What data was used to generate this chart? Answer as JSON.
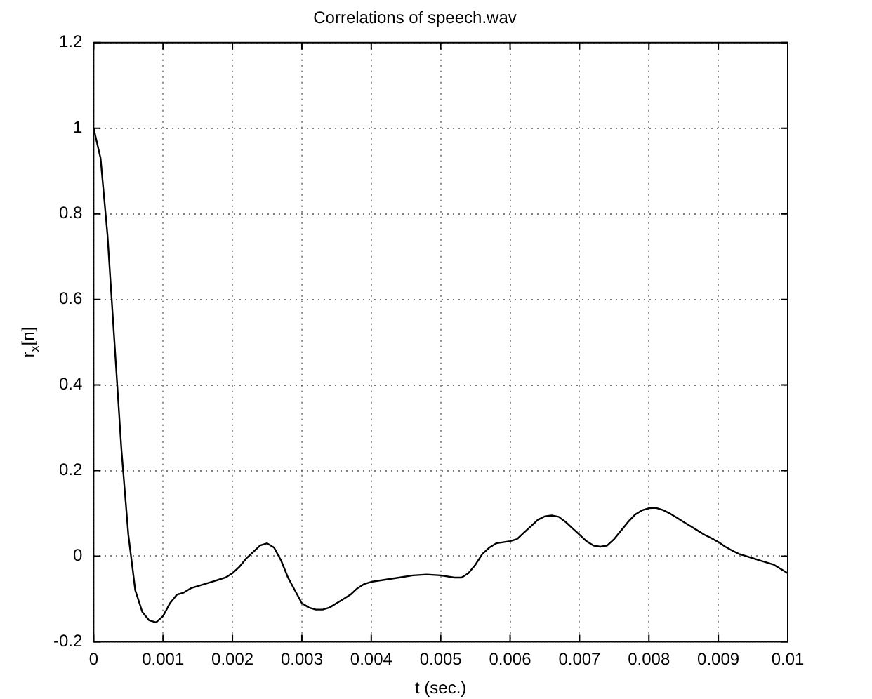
{
  "chart_data": {
    "type": "line",
    "title": "Correlations of speech.wav",
    "xlabel": "t (sec.)",
    "ylabel": "r$_{x}$[n]",
    "x": [
      0,
      0.0001,
      0.0002,
      0.0003,
      0.0004,
      0.0005,
      0.0006,
      0.0007,
      0.0008,
      0.0009,
      0.001,
      0.0011,
      0.0012,
      0.0013,
      0.0014,
      0.0015,
      0.0016,
      0.0017,
      0.0018,
      0.0019,
      0.002,
      0.0021,
      0.0022,
      0.0023,
      0.0024,
      0.0025,
      0.0026,
      0.0027,
      0.0028,
      0.0029,
      0.003,
      0.0031,
      0.0032,
      0.0033,
      0.0034,
      0.0035,
      0.0036,
      0.0037,
      0.0038,
      0.0039,
      0.004,
      0.0042,
      0.0044,
      0.0046,
      0.0048,
      0.005,
      0.0052,
      0.0053,
      0.0054,
      0.0055,
      0.0056,
      0.0057,
      0.0058,
      0.006,
      0.0061,
      0.0062,
      0.0063,
      0.0064,
      0.0065,
      0.0066,
      0.0067,
      0.0068,
      0.0069,
      0.007,
      0.0071,
      0.0072,
      0.0073,
      0.0074,
      0.0075,
      0.0076,
      0.0077,
      0.0078,
      0.0079,
      0.008,
      0.0081,
      0.0082,
      0.0083,
      0.0084,
      0.0085,
      0.0086,
      0.0087,
      0.0088,
      0.0089,
      0.009,
      0.0091,
      0.0092,
      0.0093,
      0.0094,
      0.0095,
      0.0096,
      0.0097,
      0.0098,
      0.0099,
      0.01
    ],
    "series": [
      {
        "color": "#000000",
        "values": [
          1,
          0.93,
          0.75,
          0.5,
          0.25,
          0.05,
          -0.08,
          -0.13,
          -0.15,
          -0.155,
          -0.14,
          -0.11,
          -0.09,
          -0.085,
          -0.075,
          -0.07,
          -0.065,
          -0.06,
          -0.055,
          -0.05,
          -0.04,
          -0.025,
          -0.005,
          0.01,
          0.025,
          0.03,
          0.02,
          -0.01,
          -0.05,
          -0.08,
          -0.11,
          -0.12,
          -0.125,
          -0.125,
          -0.12,
          -0.11,
          -0.1,
          -0.09,
          -0.075,
          -0.065,
          -0.06,
          -0.055,
          -0.05,
          -0.045,
          -0.043,
          -0.045,
          -0.05,
          -0.05,
          -0.04,
          -0.02,
          0.005,
          0.02,
          0.03,
          0.035,
          0.04,
          0.055,
          0.07,
          0.085,
          0.093,
          0.095,
          0.092,
          0.08,
          0.065,
          0.05,
          0.035,
          0.025,
          0.022,
          0.025,
          0.04,
          0.06,
          0.08,
          0.097,
          0.107,
          0.112,
          0.113,
          0.108,
          0.1,
          0.09,
          0.08,
          0.07,
          0.06,
          0.05,
          0.042,
          0.033,
          0.022,
          0.013,
          0.005,
          0,
          -0.005,
          -0.01,
          -0.015,
          -0.02,
          -0.03,
          -0.04
        ]
      }
    ],
    "xlim": [
      0,
      0.01
    ],
    "xticks": [
      0,
      0.001,
      0.002,
      0.003,
      0.004,
      0.005,
      0.006,
      0.007,
      0.008,
      0.009,
      0.01
    ],
    "ylim": [
      -0.2,
      1.2
    ],
    "yticks": [
      -0.2,
      0,
      0.2,
      0.4,
      0.6,
      0.8,
      1,
      1.2
    ],
    "grid": true,
    "marker": "none",
    "line_style": "solid",
    "legend": false
  }
}
